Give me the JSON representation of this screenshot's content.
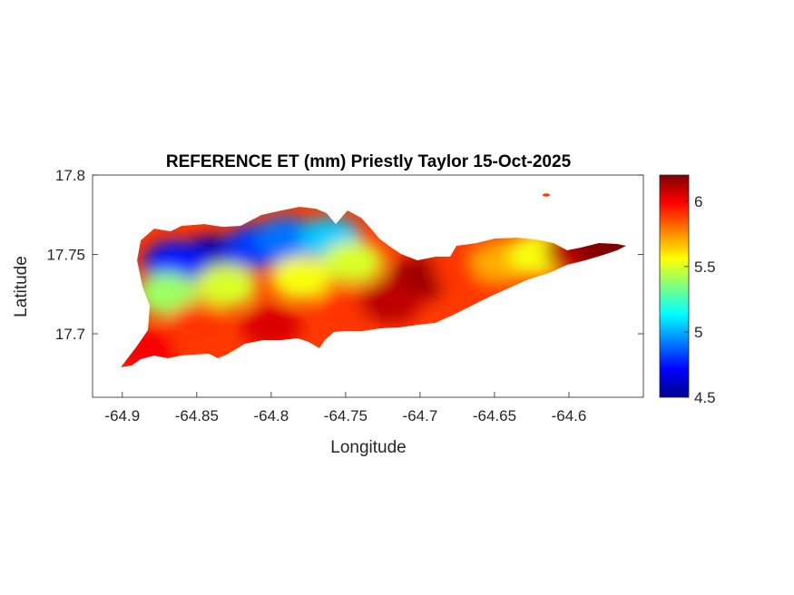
{
  "chart_data": {
    "type": "heatmap",
    "title": "REFERENCE ET (mm) Priestly Taylor 15-Oct-2025",
    "xlabel": "Longitude",
    "ylabel": "Latitude",
    "xlim": [
      -64.92,
      -64.55
    ],
    "ylim": [
      17.66,
      17.8
    ],
    "xticks": [
      -64.9,
      -64.85,
      -64.8,
      -64.75,
      -64.7,
      -64.65,
      -64.6
    ],
    "xtick_labels": [
      "-64.9",
      "-64.85",
      "-64.8",
      "-64.75",
      "-64.7",
      "-64.65",
      "-64.6"
    ],
    "yticks": [
      17.7,
      17.75,
      17.8
    ],
    "ytick_labels": [
      "17.7",
      "17.75",
      "17.8"
    ],
    "colorbar": {
      "colormap": "jet",
      "limits": [
        4.5,
        6.2
      ],
      "ticks": [
        4.5,
        5,
        5.5,
        6
      ],
      "tick_labels": [
        "4.5",
        "5",
        "5.5",
        "6"
      ]
    },
    "grid": false,
    "regions": [
      {
        "lon": -64.84,
        "lat": 17.748,
        "value": 4.6
      },
      {
        "lon": -64.865,
        "lat": 17.745,
        "value": 4.75
      },
      {
        "lon": -64.81,
        "lat": 17.755,
        "value": 4.8
      },
      {
        "lon": -64.79,
        "lat": 17.76,
        "value": 4.9
      },
      {
        "lon": -64.76,
        "lat": 17.76,
        "value": 5.05
      },
      {
        "lon": -64.87,
        "lat": 17.725,
        "value": 5.4
      },
      {
        "lon": -64.83,
        "lat": 17.73,
        "value": 5.5
      },
      {
        "lon": -64.78,
        "lat": 17.735,
        "value": 5.55
      },
      {
        "lon": -64.745,
        "lat": 17.745,
        "value": 5.5
      },
      {
        "lon": -64.85,
        "lat": 17.705,
        "value": 5.9
      },
      {
        "lon": -64.8,
        "lat": 17.705,
        "value": 6.05
      },
      {
        "lon": -64.75,
        "lat": 17.715,
        "value": 5.9
      },
      {
        "lon": -64.7,
        "lat": 17.735,
        "value": 6.15
      },
      {
        "lon": -64.67,
        "lat": 17.74,
        "value": 5.9
      },
      {
        "lon": -64.645,
        "lat": 17.745,
        "value": 5.7
      },
      {
        "lon": -64.62,
        "lat": 17.75,
        "value": 5.55
      },
      {
        "lon": -64.595,
        "lat": 17.752,
        "value": 6.1
      },
      {
        "lon": -64.575,
        "lat": 17.754,
        "value": 6.2
      },
      {
        "lon": -64.885,
        "lat": 17.69,
        "value": 6.0
      },
      {
        "lon": -64.72,
        "lat": 17.72,
        "value": 6.1
      }
    ]
  }
}
